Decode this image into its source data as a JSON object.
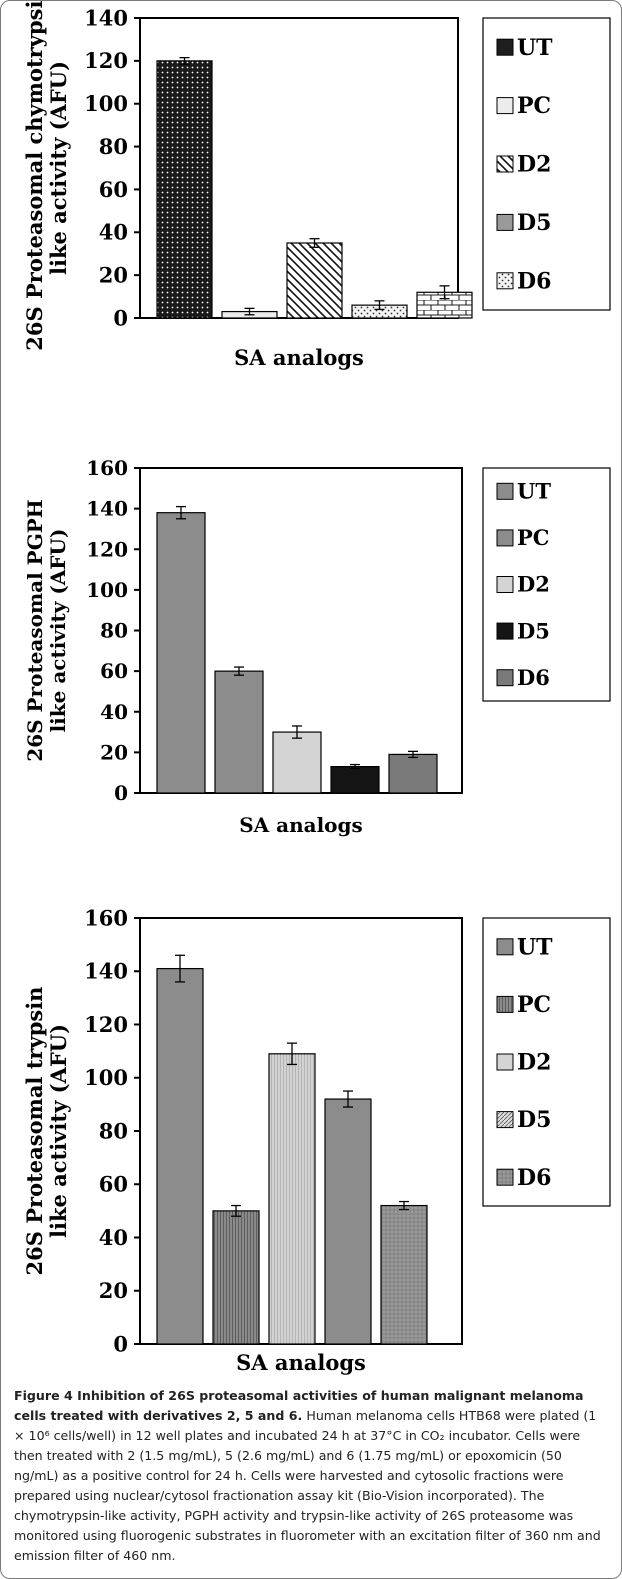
{
  "chart_data": [
    {
      "type": "bar",
      "ylabel": "26S Proteasomal chymotrypsin like activity (AFU)",
      "xlabel": "SA analogs",
      "ylim": [
        0,
        140
      ],
      "ytick_step": 20,
      "categories": [
        "UT",
        "PC",
        "D2",
        "D5",
        "D6"
      ],
      "values": [
        120,
        3,
        35,
        6,
        12
      ],
      "errors": [
        1.5,
        1.5,
        2,
        2,
        3
      ],
      "bar_patterns": [
        "dots-dark",
        "light-fill",
        "diag-lines",
        "dots-light",
        "bricks"
      ],
      "legend_patterns": [
        "solid-dark",
        "light-fill",
        "diag-lines",
        "gray-solid",
        "dots-light"
      ],
      "legend_placement": "right",
      "legend": [
        "UT",
        "PC",
        "D2",
        "D5",
        "D6"
      ]
    },
    {
      "type": "bar",
      "ylabel": "26S Proteasomal PGPH like activity (AFU)",
      "xlabel": "SA analogs",
      "ylim": [
        0,
        160
      ],
      "ytick_step": 20,
      "categories": [
        "UT",
        "PC",
        "D2",
        "D5",
        "D6"
      ],
      "values": [
        138,
        60,
        30,
        13,
        19
      ],
      "errors": [
        3,
        2,
        3,
        1,
        1.5
      ],
      "bar_patterns": [
        "gray",
        "gray",
        "light-gray",
        "black",
        "gray-dark"
      ],
      "legend_patterns": [
        "gray",
        "gray",
        "light-gray",
        "black",
        "gray-dark"
      ],
      "legend_placement": "right",
      "legend": [
        "UT",
        "PC",
        "D2",
        "D5",
        "D6"
      ]
    },
    {
      "type": "bar",
      "ylabel": "26S Proteasomal trypsin like activity (AFU)",
      "xlabel": "SA analogs",
      "ylim": [
        0,
        160
      ],
      "ytick_step": 20,
      "categories": [
        "UT",
        "PC",
        "D2",
        "D5",
        "D6"
      ],
      "values": [
        141,
        50,
        109,
        92,
        52
      ],
      "errors": [
        5,
        2,
        4,
        3,
        1.5
      ],
      "bar_patterns": [
        "gray",
        "vert-lines",
        "light-vert",
        "gray",
        "gray-grid"
      ],
      "legend_patterns": [
        "gray",
        "vert-lines",
        "light-gray",
        "diag-fine",
        "gray-grid"
      ],
      "legend_placement": "right",
      "legend": [
        "UT",
        "PC",
        "D2",
        "D5",
        "D6"
      ]
    }
  ],
  "caption": {
    "title": "Figure 4 Inhibition of 26S proteasomal activities of human malignant melanoma cells treated with derivatives 2, 5 and 6.",
    "body": "Human melanoma cells HTB68 were plated (1 × 10⁶ cells/well) in 12 well plates and incubated 24 h at 37°C in CO₂ incubator. Cells were then treated with 2 (1.5 mg/mL), 5 (2.6 mg/mL) and 6 (1.75 mg/mL) or epoxomicin (50 ng/mL) as a positive control for 24 h. Cells were harvested and cytosolic fractions were prepared using nuclear/cytosol fractionation assay kit (Bio-Vision incorporated). The chymotrypsin-like activity, PGPH activity and trypsin-like activity of 26S proteasome was monitored using fluorogenic substrates in fluorometer with an excitation filter of 360 nm and emission filter of 460 nm."
  }
}
